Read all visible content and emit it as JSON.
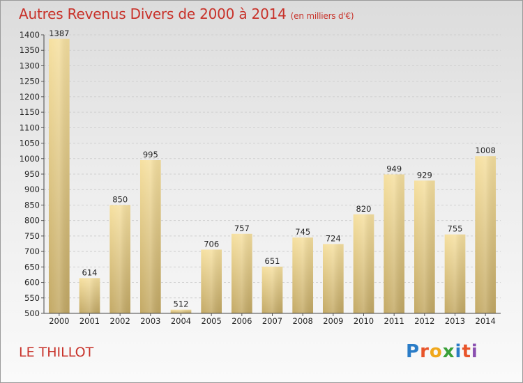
{
  "header": {
    "title": "Autres Revenus Divers de 2000 à 2014",
    "subtitle": "(en milliers d'€)"
  },
  "footer": {
    "commune": "LE THILLOT",
    "logo_letters": [
      "P",
      "r",
      "o",
      "x",
      "i",
      "t",
      "i"
    ]
  },
  "colors": {
    "title": "#c8322a",
    "bar_light": "#f6e0a0",
    "bar_dark": "#c3a965"
  },
  "chart_data": {
    "type": "bar",
    "title": "Autres Revenus Divers de 2000 à 2014",
    "subtitle": "(en milliers d'€)",
    "xlabel": "",
    "ylabel": "",
    "categories": [
      "2000",
      "2001",
      "2002",
      "2003",
      "2004",
      "2005",
      "2006",
      "2007",
      "2008",
      "2009",
      "2010",
      "2011",
      "2012",
      "2013",
      "2014"
    ],
    "values": [
      1387,
      614,
      850,
      995,
      512,
      706,
      757,
      651,
      745,
      724,
      820,
      949,
      929,
      755,
      1008
    ],
    "ylim": [
      500,
      1400
    ],
    "yticks": [
      500,
      550,
      600,
      650,
      700,
      750,
      800,
      850,
      900,
      950,
      1000,
      1050,
      1100,
      1150,
      1200,
      1250,
      1300,
      1350,
      1400
    ],
    "grid": true,
    "legend": "none"
  }
}
